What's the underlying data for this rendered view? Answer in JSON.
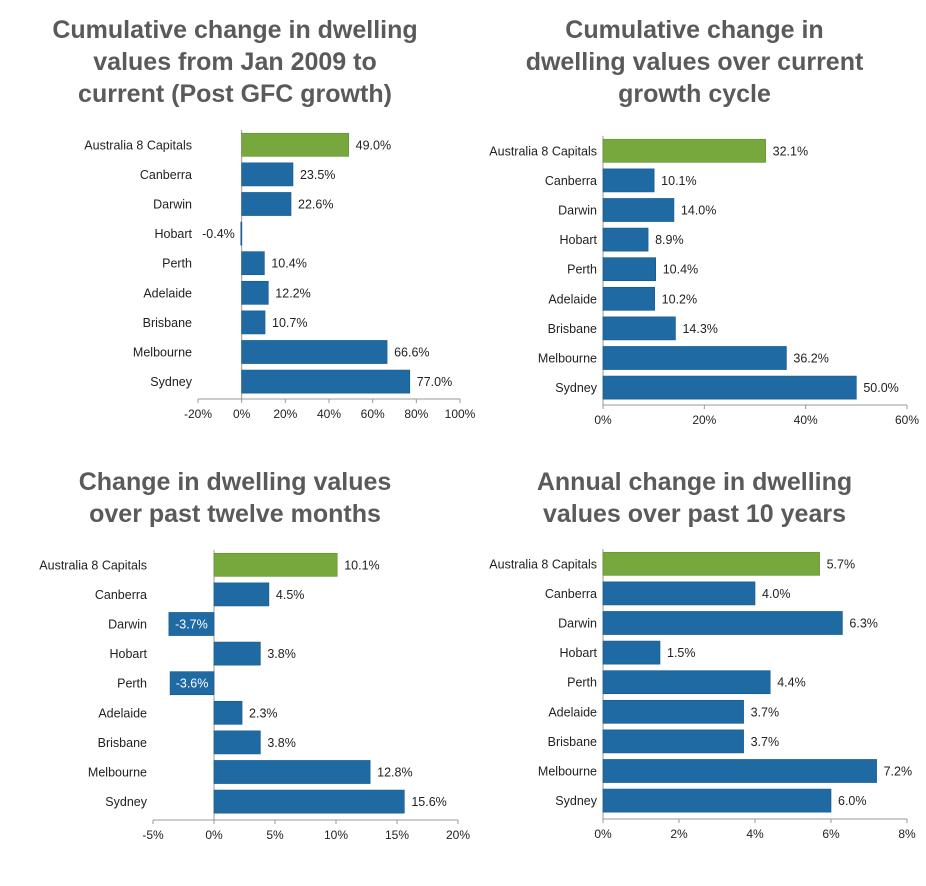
{
  "colors": {
    "highlight": "#76a83d",
    "bar": "#1f6aa3",
    "bar_edge": "#155788",
    "title": "#5a5a5a",
    "axis": "#999999",
    "text": "#222222"
  },
  "chart_data": [
    {
      "type": "bar",
      "orientation": "horizontal",
      "title_lines": [
        "Cumulative change in dwelling",
        "values from Jan 2009 to",
        "current (Post GFC growth)"
      ],
      "categories": [
        "Australia  8 Capitals",
        "Canberra",
        "Darwin",
        "Hobart",
        "Perth",
        "Adelaide",
        "Brisbane",
        "Melbourne",
        "Sydney"
      ],
      "values": [
        49.0,
        23.5,
        22.6,
        -0.4,
        10.4,
        12.2,
        10.7,
        66.6,
        77.0
      ],
      "value_labels": [
        "49.0%",
        "23.5%",
        "22.6%",
        "-0.4%",
        "10.4%",
        "12.2%",
        "10.7%",
        "66.6%",
        "77.0%"
      ],
      "highlight_index": 0,
      "xlim": [
        -20,
        100
      ],
      "ticks": [
        -20,
        0,
        20,
        40,
        60,
        80,
        100
      ],
      "tick_labels": [
        "-20%",
        "0%",
        "20%",
        "40%",
        "60%",
        "80%",
        "100%"
      ]
    },
    {
      "type": "bar",
      "orientation": "horizontal",
      "title_lines": [
        "Cumulative change in",
        "dwelling values over current",
        "growth cycle"
      ],
      "categories": [
        "Australia  8 Capitals",
        "Canberra",
        "Darwin",
        "Hobart",
        "Perth",
        "Adelaide",
        "Brisbane",
        "Melbourne",
        "Sydney"
      ],
      "values": [
        32.1,
        10.1,
        14.0,
        8.9,
        10.4,
        10.2,
        14.3,
        36.2,
        50.0
      ],
      "value_labels": [
        "32.1%",
        "10.1%",
        "14.0%",
        "8.9%",
        "10.4%",
        "10.2%",
        "14.3%",
        "36.2%",
        "50.0%"
      ],
      "highlight_index": 0,
      "xlim": [
        0,
        60
      ],
      "ticks": [
        0,
        20,
        40,
        60
      ],
      "tick_labels": [
        "0%",
        "20%",
        "40%",
        "60%"
      ]
    },
    {
      "type": "bar",
      "orientation": "horizontal",
      "title_lines": [
        "Change in dwelling values",
        "over past twelve months"
      ],
      "categories": [
        "Australia  8 Capitals",
        "Canberra",
        "Darwin",
        "Hobart",
        "Perth",
        "Adelaide",
        "Brisbane",
        "Melbourne",
        "Sydney"
      ],
      "values": [
        10.1,
        4.5,
        -3.7,
        3.8,
        -3.6,
        2.3,
        3.8,
        12.8,
        15.6
      ],
      "value_labels": [
        "10.1%",
        "4.5%",
        "-3.7%",
        "3.8%",
        "-3.6%",
        "2.3%",
        "3.8%",
        "12.8%",
        "15.6%"
      ],
      "highlight_index": 0,
      "xlim": [
        -5,
        20
      ],
      "ticks": [
        -5,
        0,
        5,
        10,
        15,
        20
      ],
      "tick_labels": [
        "-5%",
        "0%",
        "5%",
        "10%",
        "15%",
        "20%"
      ]
    },
    {
      "type": "bar",
      "orientation": "horizontal",
      "title_lines": [
        "Annual change in dwelling",
        "values over past 10 years"
      ],
      "categories": [
        "Australia  8 Capitals",
        "Canberra",
        "Darwin",
        "Hobart",
        "Perth",
        "Adelaide",
        "Brisbane",
        "Melbourne",
        "Sydney"
      ],
      "values": [
        5.7,
        4.0,
        6.3,
        1.5,
        4.4,
        3.7,
        3.7,
        7.2,
        6.0
      ],
      "value_labels": [
        "5.7%",
        "4.0%",
        "6.3%",
        "1.5%",
        "4.4%",
        "3.7%",
        "3.7%",
        "7.2%",
        "6.0%"
      ],
      "highlight_index": 0,
      "xlim": [
        0,
        8
      ],
      "ticks": [
        0,
        2,
        4,
        6,
        8
      ],
      "tick_labels": [
        "0%",
        "2%",
        "4%",
        "6%",
        "8%"
      ]
    }
  ]
}
